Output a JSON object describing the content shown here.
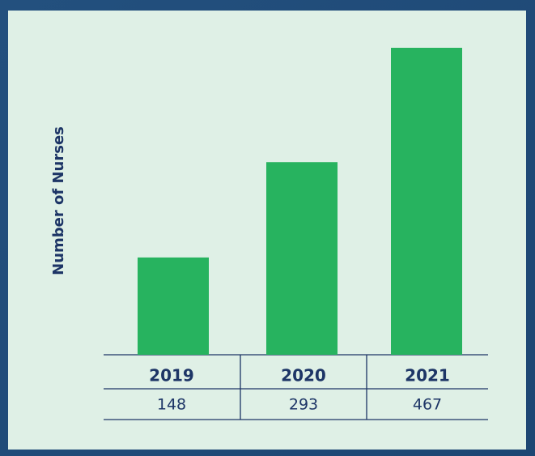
{
  "chart_data": {
    "type": "bar",
    "ylabel": "Number of Nurses",
    "categories": [
      "2019",
      "2020",
      "2021"
    ],
    "values": [
      148,
      293,
      467
    ],
    "color": "#27b35f"
  }
}
